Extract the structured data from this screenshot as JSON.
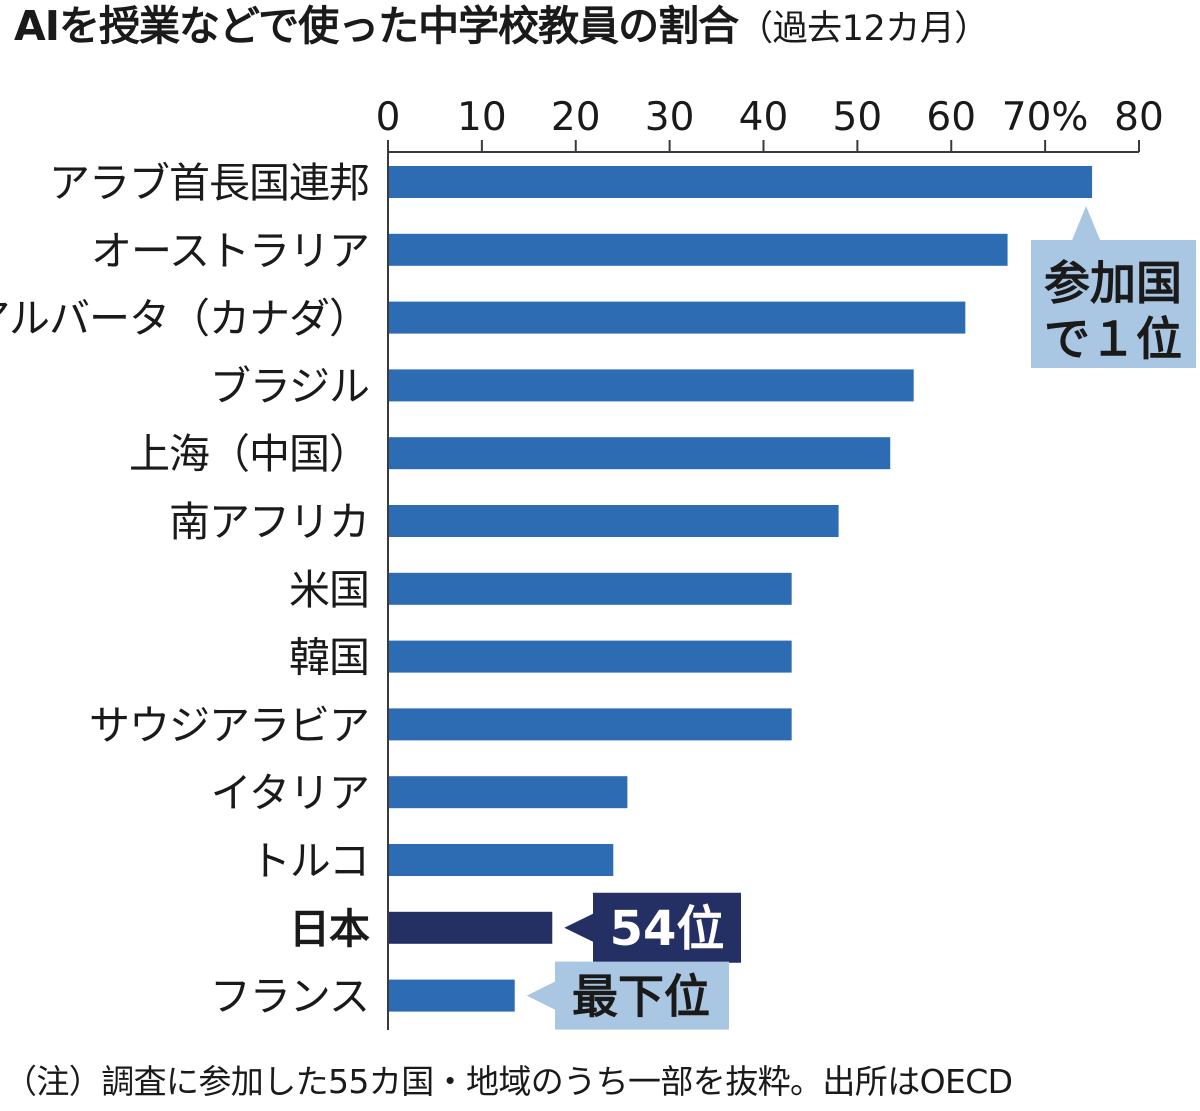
{
  "chart_data": {
    "type": "bar",
    "orientation": "horizontal",
    "title": "AIを授業などで使った中学校教員の割合",
    "subtitle": "（過去12カ月）",
    "xlim": [
      0,
      80
    ],
    "xticks": [
      0,
      10,
      20,
      30,
      40,
      50,
      60,
      70,
      80
    ],
    "tick_labels": [
      "0",
      "10",
      "20",
      "30",
      "40",
      "50",
      "60",
      "70%",
      "80"
    ],
    "categories": [
      "アラブ首長国連邦",
      "オーストラリア",
      "アルバータ（カナダ）",
      "ブラジル",
      "上海（中国）",
      "南アフリカ",
      "米国",
      "韓国",
      "サウジアラビア",
      "イタリア",
      "トルコ",
      "日本",
      "フランス"
    ],
    "values": [
      75,
      66,
      61.5,
      56,
      53.5,
      48,
      43,
      43,
      43,
      25.5,
      24,
      17.5,
      13.5
    ],
    "highlight": "日本",
    "annotations": [
      {
        "target": "アラブ首長国連邦",
        "text": "参加国で１位",
        "lines": [
          "参加国",
          "で１位"
        ]
      },
      {
        "target": "日本",
        "text": "54位"
      },
      {
        "target": "フランス",
        "text": "最下位"
      }
    ],
    "note": "（注）調査に参加した55カ国・地域のうち一部を抜粋。出所はOECD",
    "colors": {
      "bar": "#2d6bb3",
      "highlight_bar": "#243063",
      "callout_light": "#a9c6e3",
      "callout_dark": "#243063",
      "axis": "#3a3a3a",
      "text": "#1a1a1a",
      "highlight_label": "#ffffff"
    }
  }
}
